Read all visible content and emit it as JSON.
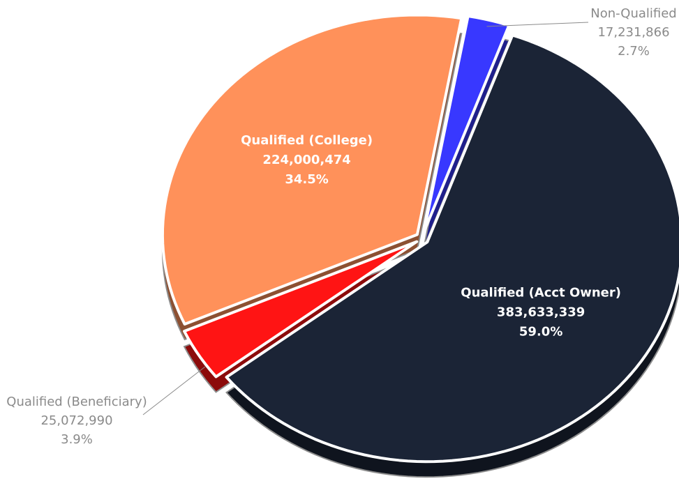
{
  "chart_data": {
    "type": "pie",
    "categories": [
      "Non-Qualified",
      "Qualified (Acct Owner)",
      "Qualified (Beneficiary)",
      "Qualified (College)"
    ],
    "values": [
      17231866,
      383633339,
      25072990,
      224000474
    ],
    "value_labels": [
      "17,231,866",
      "383,633,339",
      "25,072,990",
      "224,000,474"
    ],
    "percent_labels": [
      "2.7%",
      "59.0%",
      "3.9%",
      "34.5%"
    ],
    "colors": [
      "#3838ff",
      "#1b2436",
      "#ff1414",
      "#ff915a"
    ]
  }
}
